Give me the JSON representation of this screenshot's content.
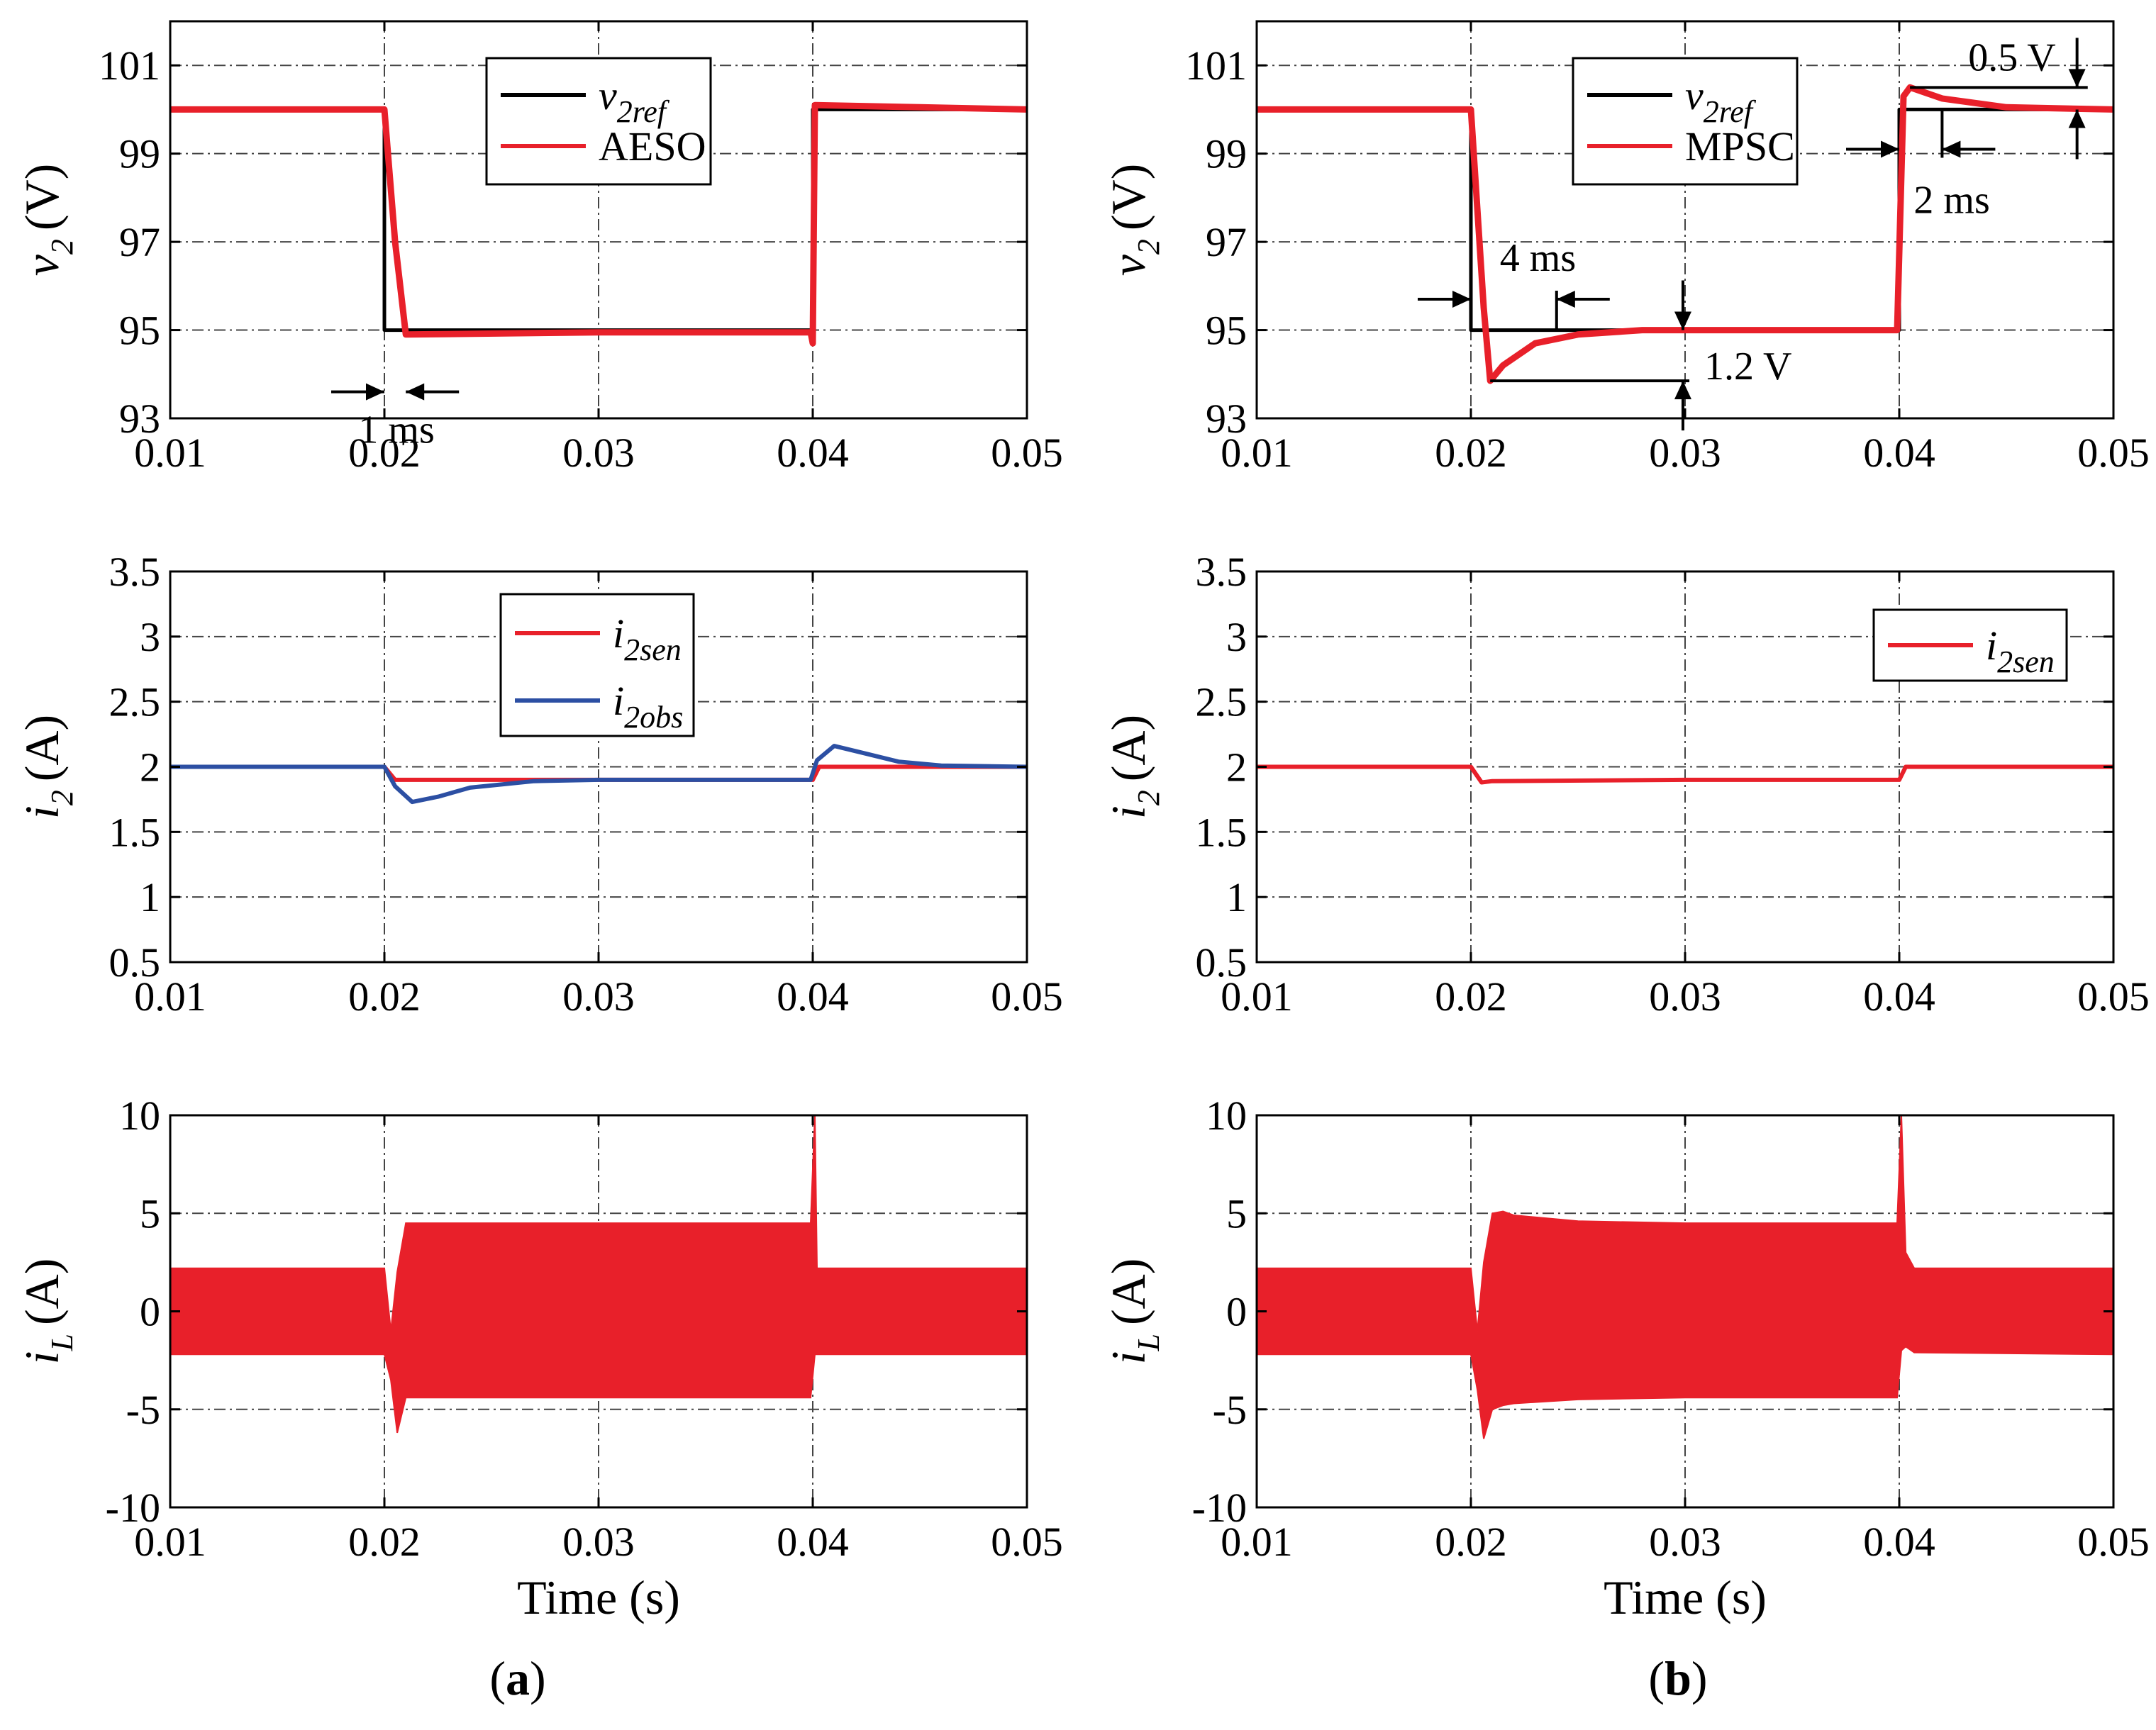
{
  "colors": {
    "ref": "#000000",
    "red": "#e8202a",
    "blue": "#2c4fa3",
    "grid": "#444444"
  },
  "chart_data": [
    {
      "id": "a-top",
      "type": "line",
      "column": "a",
      "ylabel": {
        "var": "v",
        "sub": "2",
        "unit": "(V)"
      },
      "xlim": [
        0.01,
        0.05
      ],
      "ylim": [
        93,
        102
      ],
      "xticks": [
        "0.01",
        "0.02",
        "0.03",
        "0.04",
        "0.05"
      ],
      "yticks": [
        "93",
        "95",
        "97",
        "99",
        "101"
      ],
      "grid": true,
      "legend_position": "top-center",
      "series": [
        {
          "name": "v_2ref",
          "label_var": "v",
          "label_sub": "2ref",
          "color": "#000000",
          "x": [
            0.01,
            0.02,
            0.02,
            0.04,
            0.04,
            0.05
          ],
          "y": [
            100,
            100,
            95,
            95,
            100,
            100
          ]
        },
        {
          "name": "AESO",
          "label_var": "AESO",
          "label_sub": "",
          "color": "#e8202a",
          "x": [
            0.01,
            0.02,
            0.0205,
            0.021,
            0.03,
            0.0399,
            0.04,
            0.0401,
            0.045,
            0.05
          ],
          "y": [
            100,
            100,
            97,
            94.9,
            94.95,
            94.95,
            94.7,
            100.1,
            100.05,
            100
          ]
        }
      ],
      "annotations": [
        {
          "text": "1 ms"
        }
      ]
    },
    {
      "id": "b-top",
      "type": "line",
      "column": "b",
      "ylabel": {
        "var": "v",
        "sub": "2",
        "unit": "(V)"
      },
      "xlim": [
        0.01,
        0.05
      ],
      "ylim": [
        93,
        102
      ],
      "xticks": [
        "0.01",
        "0.02",
        "0.03",
        "0.04",
        "0.05"
      ],
      "yticks": [
        "93",
        "95",
        "97",
        "99",
        "101"
      ],
      "grid": true,
      "legend_position": "top-center",
      "series": [
        {
          "name": "v_2ref",
          "label_var": "v",
          "label_sub": "2ref",
          "color": "#000000",
          "x": [
            0.01,
            0.02,
            0.02,
            0.04,
            0.04,
            0.05
          ],
          "y": [
            100,
            100,
            95,
            95,
            100,
            100
          ]
        },
        {
          "name": "MPSC",
          "label_var": "MPSC",
          "label_sub": "",
          "color": "#e8202a",
          "x": [
            0.01,
            0.02,
            0.0206,
            0.0209,
            0.0215,
            0.023,
            0.025,
            0.028,
            0.03,
            0.0399,
            0.0402,
            0.0405,
            0.042,
            0.045,
            0.05
          ],
          "y": [
            100,
            100,
            95.5,
            93.85,
            94.2,
            94.7,
            94.9,
            95,
            95,
            95,
            100.3,
            100.5,
            100.25,
            100.05,
            100
          ]
        }
      ],
      "annotations": [
        {
          "text": "0.5 V"
        },
        {
          "text": "2 ms"
        },
        {
          "text": "4 ms"
        },
        {
          "text": "1.2 V"
        }
      ]
    },
    {
      "id": "a-mid",
      "type": "line",
      "column": "a",
      "ylabel": {
        "var": "i",
        "sub": "2",
        "unit": "(A)"
      },
      "xlim": [
        0.01,
        0.05
      ],
      "ylim": [
        0.5,
        3.5
      ],
      "xticks": [
        "0.01",
        "0.02",
        "0.03",
        "0.04",
        "0.05"
      ],
      "yticks": [
        "0.5",
        "1",
        "1.5",
        "2",
        "2.5",
        "3",
        "3.5"
      ],
      "grid": true,
      "legend_position": "top-center",
      "series": [
        {
          "name": "i_2sen",
          "label_var": "i",
          "label_sub": "2sen",
          "color": "#e8202a",
          "x": [
            0.01,
            0.02,
            0.0205,
            0.04,
            0.0403,
            0.05
          ],
          "y": [
            2,
            2,
            1.9,
            1.9,
            2,
            2
          ]
        },
        {
          "name": "i_2obs",
          "label_var": "i",
          "label_sub": "2obs",
          "color": "#2c4fa3",
          "x": [
            0.01,
            0.02,
            0.0205,
            0.0213,
            0.0225,
            0.024,
            0.027,
            0.03,
            0.0399,
            0.0402,
            0.041,
            0.0425,
            0.044,
            0.046,
            0.05
          ],
          "y": [
            2,
            2,
            1.85,
            1.73,
            1.77,
            1.84,
            1.89,
            1.9,
            1.9,
            2.05,
            2.16,
            2.1,
            2.04,
            2.01,
            2
          ]
        }
      ]
    },
    {
      "id": "b-mid",
      "type": "line",
      "column": "b",
      "ylabel": {
        "var": "i",
        "sub": "2",
        "unit": "(A)"
      },
      "xlim": [
        0.01,
        0.05
      ],
      "ylim": [
        0.5,
        3.5
      ],
      "xticks": [
        "0.01",
        "0.02",
        "0.03",
        "0.04",
        "0.05"
      ],
      "yticks": [
        "0.5",
        "1",
        "1.5",
        "2",
        "2.5",
        "3",
        "3.5"
      ],
      "grid": true,
      "legend_position": "top-right",
      "series": [
        {
          "name": "i_2sen",
          "label_var": "i",
          "label_sub": "2sen",
          "color": "#e8202a",
          "x": [
            0.01,
            0.02,
            0.0205,
            0.021,
            0.03,
            0.04,
            0.0403,
            0.05
          ],
          "y": [
            2,
            2,
            1.88,
            1.89,
            1.9,
            1.9,
            2,
            2
          ]
        }
      ]
    },
    {
      "id": "a-bot",
      "type": "area",
      "column": "a",
      "ylabel": {
        "var": "i",
        "sub": "L",
        "unit": "(A)"
      },
      "xlabel": "Time (s)",
      "xlim": [
        0.01,
        0.05
      ],
      "ylim": [
        -10,
        10
      ],
      "xticks": [
        "0.01",
        "0.02",
        "0.03",
        "0.04",
        "0.05"
      ],
      "yticks": [
        "-10",
        "-5",
        "0",
        "5",
        "10"
      ],
      "grid": true,
      "series": [
        {
          "name": "i_L",
          "color": "#e8202a",
          "x": [
            0.01,
            0.02,
            0.0203,
            0.0206,
            0.021,
            0.0215,
            0.03,
            0.0399,
            0.0401,
            0.0402,
            0.0404,
            0.05
          ],
          "upper": [
            2.2,
            2.2,
            -1.0,
            2.0,
            4.5,
            4.5,
            4.5,
            4.5,
            10,
            2.2,
            2.2,
            2.2
          ],
          "lower": [
            -2.2,
            -2.2,
            -3.5,
            -6.2,
            -4.4,
            -4.4,
            -4.4,
            -4.4,
            -2.2,
            -2.2,
            -2.2,
            -2.2
          ]
        }
      ]
    },
    {
      "id": "b-bot",
      "type": "area",
      "column": "b",
      "ylabel": {
        "var": "i",
        "sub": "L",
        "unit": "(A)"
      },
      "xlabel": "Time (s)",
      "xlim": [
        0.01,
        0.05
      ],
      "ylim": [
        -10,
        10
      ],
      "xticks": [
        "0.01",
        "0.02",
        "0.03",
        "0.04",
        "0.05"
      ],
      "yticks": [
        "-10",
        "-5",
        "0",
        "5",
        "10"
      ],
      "grid": true,
      "series": [
        {
          "name": "i_L",
          "color": "#e8202a",
          "x": [
            0.01,
            0.02,
            0.0203,
            0.0206,
            0.021,
            0.0215,
            0.022,
            0.025,
            0.03,
            0.0399,
            0.0401,
            0.0403,
            0.0407,
            0.05
          ],
          "upper": [
            2.2,
            2.2,
            -1.0,
            2.5,
            5.0,
            5.1,
            4.9,
            4.6,
            4.5,
            4.5,
            10,
            3.0,
            2.2,
            2.2
          ],
          "lower": [
            -2.2,
            -2.2,
            -4.0,
            -6.5,
            -5.0,
            -4.8,
            -4.7,
            -4.5,
            -4.4,
            -4.4,
            -2.0,
            -1.8,
            -2.1,
            -2.2
          ]
        }
      ]
    }
  ],
  "panel_labels": {
    "a": "a",
    "b": "b"
  }
}
